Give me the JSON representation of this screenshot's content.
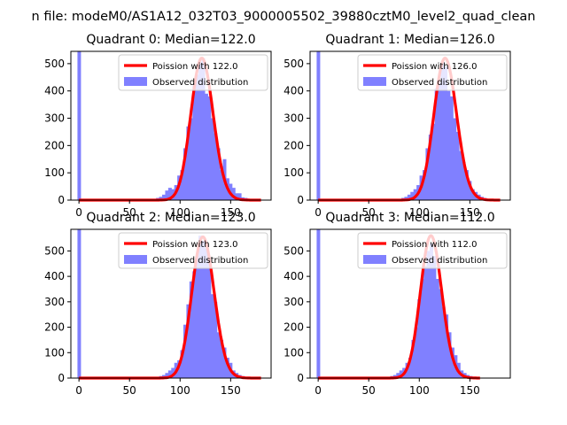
{
  "figure": {
    "suptitle": "n file: modeM0/AS1A12_032T03_9000005502_39880cztM0_level2_quad_clean"
  },
  "style": {
    "bar_color": "#8080ff",
    "fit_color": "#ff0000",
    "frame_color": "#000000",
    "background": "#ffffff"
  },
  "legend": {
    "fit_prefix": "Poission with ",
    "observed_label": "Observed distribution"
  },
  "chart_data": [
    {
      "type": "bar",
      "title": "Quadrant 0: Median=122.0",
      "median": 122.0,
      "legend_fit_label": "Poission with 122.0",
      "legend_placement": "upper-right",
      "xlim": [
        -8,
        190
      ],
      "ylim": [
        0,
        545
      ],
      "xticks": [
        0,
        50,
        100,
        150
      ],
      "yticks": [
        0,
        100,
        200,
        300,
        400,
        500
      ],
      "bin_width": 3.5,
      "zero_bar": 545,
      "hist": [
        [
          78,
          8
        ],
        [
          81,
          12
        ],
        [
          84,
          20
        ],
        [
          87,
          35
        ],
        [
          90,
          45
        ],
        [
          93,
          40
        ],
        [
          96,
          55
        ],
        [
          99,
          90
        ],
        [
          102,
          110
        ],
        [
          105,
          190
        ],
        [
          108,
          270
        ],
        [
          111,
          300
        ],
        [
          114,
          420
        ],
        [
          117,
          460
        ],
        [
          120,
          505
        ],
        [
          123,
          520
        ],
        [
          126,
          390
        ],
        [
          129,
          380
        ],
        [
          132,
          300
        ],
        [
          135,
          245
        ],
        [
          138,
          190
        ],
        [
          141,
          110
        ],
        [
          144,
          150
        ],
        [
          147,
          80
        ],
        [
          150,
          60
        ],
        [
          153,
          45
        ],
        [
          156,
          25
        ],
        [
          159,
          25
        ],
        [
          162,
          10
        ],
        [
          165,
          8
        ],
        [
          168,
          5
        ]
      ],
      "fit_x_range": [
        0,
        180
      ],
      "fit_peak": 520
    },
    {
      "type": "bar",
      "title": "Quadrant 1: Median=126.0",
      "median": 126.0,
      "legend_fit_label": "Poission with 126.0",
      "legend_placement": "upper-right",
      "xlim": [
        -8,
        190
      ],
      "ylim": [
        0,
        545
      ],
      "xticks": [
        0,
        50,
        100,
        150
      ],
      "yticks": [
        0,
        100,
        200,
        300,
        400,
        500
      ],
      "bin_width": 3.5,
      "zero_bar": 545,
      "hist": [
        [
          84,
          8
        ],
        [
          87,
          12
        ],
        [
          90,
          20
        ],
        [
          93,
          30
        ],
        [
          96,
          40
        ],
        [
          99,
          55
        ],
        [
          102,
          90
        ],
        [
          105,
          110
        ],
        [
          108,
          190
        ],
        [
          111,
          240
        ],
        [
          114,
          280
        ],
        [
          117,
          410
        ],
        [
          120,
          430
        ],
        [
          123,
          510
        ],
        [
          126,
          490
        ],
        [
          129,
          400
        ],
        [
          132,
          380
        ],
        [
          135,
          300
        ],
        [
          138,
          250
        ],
        [
          141,
          180
        ],
        [
          144,
          140
        ],
        [
          147,
          110
        ],
        [
          150,
          70
        ],
        [
          153,
          40
        ],
        [
          156,
          30
        ],
        [
          159,
          20
        ],
        [
          162,
          12
        ],
        [
          165,
          8
        ]
      ],
      "fit_x_range": [
        0,
        180
      ],
      "fit_peak": 520
    },
    {
      "type": "bar",
      "title": "Quadrant 2: Median=123.0",
      "median": 123.0,
      "legend_fit_label": "Poission with 123.0",
      "legend_placement": "upper-right",
      "xlim": [
        -8,
        190
      ],
      "ylim": [
        0,
        585
      ],
      "xticks": [
        0,
        50,
        100,
        150
      ],
      "yticks": [
        0,
        100,
        200,
        300,
        400,
        500
      ],
      "bin_width": 3.5,
      "zero_bar": 585,
      "hist": [
        [
          78,
          5
        ],
        [
          81,
          8
        ],
        [
          84,
          12
        ],
        [
          87,
          20
        ],
        [
          90,
          30
        ],
        [
          93,
          40
        ],
        [
          96,
          60
        ],
        [
          99,
          70
        ],
        [
          102,
          110
        ],
        [
          105,
          210
        ],
        [
          108,
          290
        ],
        [
          111,
          380
        ],
        [
          114,
          420
        ],
        [
          117,
          480
        ],
        [
          120,
          560
        ],
        [
          123,
          540
        ],
        [
          126,
          510
        ],
        [
          129,
          460
        ],
        [
          132,
          330
        ],
        [
          135,
          300
        ],
        [
          138,
          180
        ],
        [
          141,
          150
        ],
        [
          144,
          120
        ],
        [
          147,
          80
        ],
        [
          150,
          60
        ],
        [
          153,
          30
        ],
        [
          156,
          20
        ],
        [
          159,
          12
        ],
        [
          162,
          8
        ],
        [
          165,
          5
        ]
      ],
      "fit_x_range": [
        0,
        180
      ],
      "fit_peak": 555
    },
    {
      "type": "bar",
      "title": "Quadrant 3: Median=112.0",
      "median": 112.0,
      "legend_fit_label": "Poission with 112.0",
      "legend_placement": "upper-right",
      "xlim": [
        -8,
        190
      ],
      "ylim": [
        0,
        585
      ],
      "xticks": [
        0,
        50,
        100,
        150
      ],
      "yticks": [
        0,
        100,
        200,
        300,
        400,
        500
      ],
      "bin_width": 3.5,
      "zero_bar": 585,
      "hist": [
        [
          70,
          5
        ],
        [
          73,
          8
        ],
        [
          76,
          12
        ],
        [
          79,
          20
        ],
        [
          82,
          30
        ],
        [
          85,
          40
        ],
        [
          88,
          60
        ],
        [
          91,
          80
        ],
        [
          94,
          150
        ],
        [
          97,
          200
        ],
        [
          100,
          310
        ],
        [
          103,
          390
        ],
        [
          106,
          440
        ],
        [
          109,
          500
        ],
        [
          112,
          530
        ],
        [
          115,
          480
        ],
        [
          118,
          390
        ],
        [
          121,
          350
        ],
        [
          124,
          280
        ],
        [
          127,
          250
        ],
        [
          130,
          180
        ],
        [
          133,
          120
        ],
        [
          136,
          90
        ],
        [
          139,
          60
        ],
        [
          142,
          30
        ],
        [
          145,
          20
        ],
        [
          148,
          12
        ],
        [
          151,
          8
        ],
        [
          154,
          5
        ]
      ],
      "fit_x_range": [
        0,
        160
      ],
      "fit_peak": 560
    }
  ]
}
